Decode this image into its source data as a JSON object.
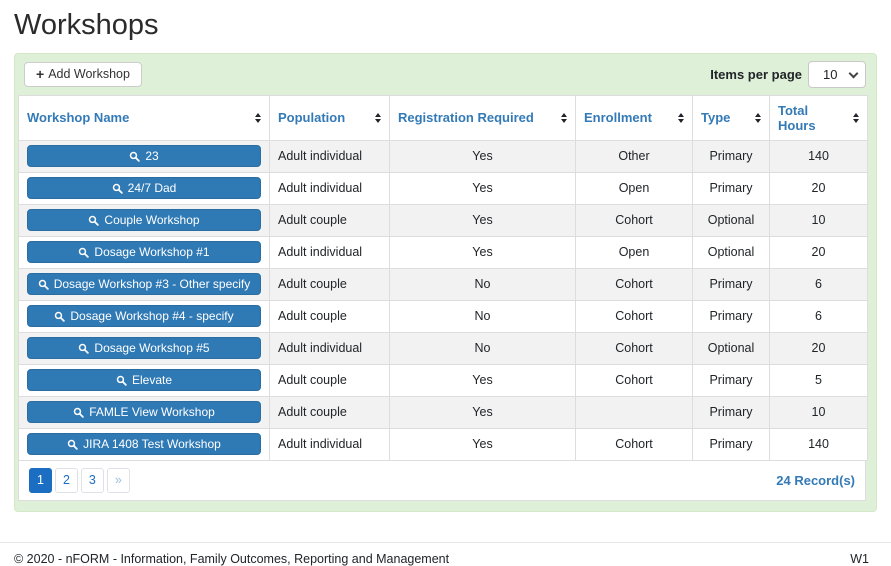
{
  "page": {
    "title": "Workshops"
  },
  "toolbar": {
    "add_button_label": "Add Workshop",
    "items_per_page_label": "Items per page",
    "items_per_page_value": "10"
  },
  "table": {
    "columns": [
      "Workshop Name",
      "Population",
      "Registration Required",
      "Enrollment",
      "Type",
      "Total Hours"
    ],
    "rows": [
      {
        "name": "23",
        "population": "Adult individual",
        "registration_required": "Yes",
        "enrollment": "Other",
        "type": "Primary",
        "total_hours": "140"
      },
      {
        "name": "24/7 Dad",
        "population": "Adult individual",
        "registration_required": "Yes",
        "enrollment": "Open",
        "type": "Primary",
        "total_hours": "20"
      },
      {
        "name": "Couple Workshop",
        "population": "Adult couple",
        "registration_required": "Yes",
        "enrollment": "Cohort",
        "type": "Optional",
        "total_hours": "10"
      },
      {
        "name": "Dosage Workshop #1",
        "population": "Adult individual",
        "registration_required": "Yes",
        "enrollment": "Open",
        "type": "Optional",
        "total_hours": "20"
      },
      {
        "name": "Dosage Workshop #3 - Other specify",
        "population": "Adult couple",
        "registration_required": "No",
        "enrollment": "Cohort",
        "type": "Primary",
        "total_hours": "6"
      },
      {
        "name": "Dosage Workshop #4 - specify",
        "population": "Adult couple",
        "registration_required": "No",
        "enrollment": "Cohort",
        "type": "Primary",
        "total_hours": "6"
      },
      {
        "name": "Dosage Workshop #5",
        "population": "Adult individual",
        "registration_required": "No",
        "enrollment": "Cohort",
        "type": "Optional",
        "total_hours": "20"
      },
      {
        "name": "Elevate",
        "population": "Adult couple",
        "registration_required": "Yes",
        "enrollment": "Cohort",
        "type": "Primary",
        "total_hours": "5"
      },
      {
        "name": "FAMLE View Workshop",
        "population": "Adult couple",
        "registration_required": "Yes",
        "enrollment": "",
        "type": "Primary",
        "total_hours": "10"
      },
      {
        "name": "JIRA 1408 Test Workshop",
        "population": "Adult individual",
        "registration_required": "Yes",
        "enrollment": "Cohort",
        "type": "Primary",
        "total_hours": "140"
      }
    ]
  },
  "pagination": {
    "pages": [
      "1",
      "2",
      "3"
    ],
    "active_page": "1",
    "next_label": "»",
    "records_label": "24 Record(s)"
  },
  "footer": {
    "copyright": "© 2020 - nFORM - Information, Family Outcomes, Reporting and Management",
    "environment": "W1"
  },
  "icons": {
    "add": "plus-icon",
    "workshop": "search-icon",
    "sort": "sort-up-down-icon",
    "select": "chevron-down-icon"
  },
  "colors": {
    "panel_background": "#dff0d8",
    "header_link_blue": "#337ab7",
    "workshop_button_blue": "#2f79b5",
    "active_page_blue": "#1b6ec2",
    "row_stripe": "#f2f2f2",
    "table_border": "#dddddd"
  }
}
